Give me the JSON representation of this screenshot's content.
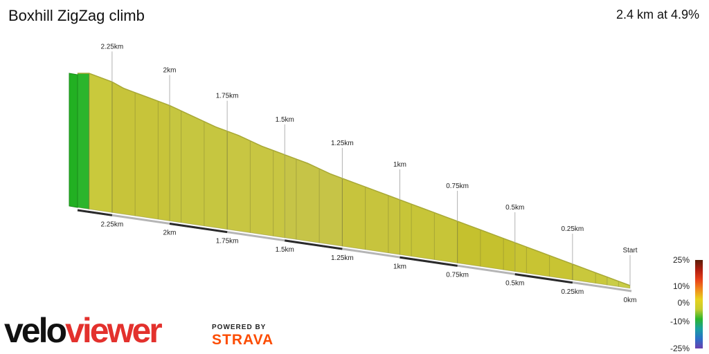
{
  "header": {
    "title": "Boxhill ZigZag climb",
    "summary": "2.4 km at 4.9%"
  },
  "branding": {
    "logo_part1": "velo",
    "logo_part2": "viewer",
    "powered_by": "POWERED BY",
    "strava": "STRAVA"
  },
  "chart_data": {
    "type": "area",
    "title": "Boxhill ZigZag climb",
    "subtitle": "2.4 km at 4.9%",
    "xlabel": "",
    "ylabel": "",
    "x_unit": "km",
    "x_range": [
      0,
      2.4
    ],
    "series": [
      {
        "values_description": "elevation",
        "x": [
          0,
          0.1,
          0.2,
          0.3,
          0.4,
          0.5,
          0.6,
          0.7,
          0.8,
          0.9,
          1.0,
          1.1,
          1.2,
          1.3,
          1.4,
          1.5,
          1.6,
          1.7,
          1.8,
          1.9,
          2.0,
          2.1,
          2.2,
          2.25,
          2.3,
          2.35,
          2.4
        ],
        "y": [
          0,
          4,
          8,
          12,
          16,
          20,
          24,
          28,
          32,
          36,
          40,
          44,
          48,
          52,
          57,
          61,
          65,
          70,
          74,
          79,
          84,
          88,
          92,
          95,
          97,
          99,
          99
        ]
      }
    ],
    "gradient_segments": [
      {
        "from": 0.0,
        "to": 0.1,
        "color": "#c9cd47"
      },
      {
        "from": 0.1,
        "to": 0.25,
        "color": "#c9c83c"
      },
      {
        "from": 0.25,
        "to": 0.5,
        "color": "#c8c433"
      },
      {
        "from": 0.5,
        "to": 0.75,
        "color": "#c5c12e"
      },
      {
        "from": 0.75,
        "to": 1.0,
        "color": "#c7c538"
      },
      {
        "from": 1.0,
        "to": 1.25,
        "color": "#c7c43d"
      },
      {
        "from": 1.25,
        "to": 1.5,
        "color": "#c6c447"
      },
      {
        "from": 1.5,
        "to": 1.75,
        "color": "#c8c642"
      },
      {
        "from": 1.75,
        "to": 2.0,
        "color": "#c6c640"
      },
      {
        "from": 2.0,
        "to": 2.25,
        "color": "#c7c43a"
      },
      {
        "from": 2.25,
        "to": 2.35,
        "color": "#c9c93c"
      },
      {
        "from": 2.35,
        "to": 2.4,
        "color": "#2cb52c"
      }
    ],
    "distance_labels": [
      "Start",
      "0.25km",
      "0.5km",
      "0.75km",
      "1km",
      "1.25km",
      "1.5km",
      "1.75km",
      "2km",
      "2.25km"
    ],
    "base_labels": [
      "0km",
      "0.25km",
      "0.5km",
      "0.75km",
      "1km",
      "1.25km",
      "1.5km",
      "1.75km",
      "2km",
      "2.25km"
    ],
    "legend": {
      "placement": "bottom-right",
      "labels": [
        "25%",
        "10%",
        "0%",
        "-10%",
        "-25%"
      ],
      "colors": [
        "#5a1e0a",
        "#b01e10",
        "#e8401a",
        "#f08a1c",
        "#e8d21e",
        "#c7cc2e",
        "#2cb52c",
        "#1aa0a0",
        "#2a70c8",
        "#6a3fb0"
      ]
    }
  }
}
